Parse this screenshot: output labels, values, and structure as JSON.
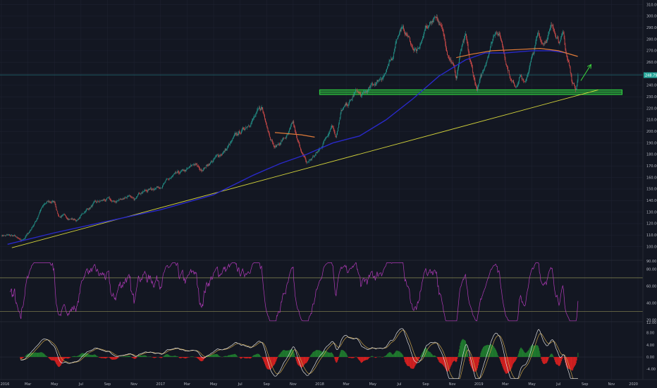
{
  "chart_data": [
    {
      "type": "candlestick",
      "panel": "price",
      "title": "",
      "yticks": [
        100,
        110,
        120,
        130,
        140,
        150,
        160,
        170,
        180,
        190,
        200,
        210,
        220,
        230,
        240,
        250,
        260,
        270,
        280,
        290,
        300,
        310
      ],
      "ytick_labels": [
        "100.00",
        "110.00",
        "120.00",
        "130.00",
        "140.00",
        "150.00",
        "160.00",
        "170.00",
        "180.00",
        "190.00",
        "200.00",
        "210.00",
        "220.00",
        "230.00",
        "240.00",
        "250.00",
        "260.00",
        "270.00",
        "280.00",
        "290.00",
        "300.00",
        "310.00"
      ],
      "ylim": [
        93,
        314
      ],
      "last_price": 248.79,
      "last_price_label": "248.79",
      "x_range": [
        "2016-01-01",
        "2019-11-16"
      ],
      "price_path": [
        [
          "2016-01-01",
          110
        ],
        [
          "2016-02-01",
          109
        ],
        [
          "2016-02-15",
          104
        ],
        [
          "2016-03-01",
          111
        ],
        [
          "2016-03-20",
          123
        ],
        [
          "2016-04-01",
          134
        ],
        [
          "2016-04-15",
          138
        ],
        [
          "2016-05-01",
          139
        ],
        [
          "2016-05-10",
          127
        ],
        [
          "2016-06-01",
          125
        ],
        [
          "2016-06-24",
          123
        ],
        [
          "2016-07-10",
          131
        ],
        [
          "2016-08-01",
          137
        ],
        [
          "2016-09-01",
          141
        ],
        [
          "2016-09-15",
          138
        ],
        [
          "2016-10-15",
          144
        ],
        [
          "2016-11-01",
          140
        ],
        [
          "2016-11-09",
          147
        ],
        [
          "2016-12-01",
          149
        ],
        [
          "2017-01-01",
          153
        ],
        [
          "2017-02-01",
          161
        ],
        [
          "2017-03-01",
          166
        ],
        [
          "2017-03-20",
          172
        ],
        [
          "2017-04-01",
          166
        ],
        [
          "2017-04-20",
          172
        ],
        [
          "2017-05-10",
          178
        ],
        [
          "2017-06-01",
          185
        ],
        [
          "2017-06-20",
          195
        ],
        [
          "2017-07-10",
          202
        ],
        [
          "2017-08-01",
          212
        ],
        [
          "2017-08-20",
          220
        ],
        [
          "2017-08-28",
          211
        ],
        [
          "2017-09-10",
          196
        ],
        [
          "2017-09-20",
          186
        ],
        [
          "2017-10-05",
          192
        ],
        [
          "2017-10-20",
          197
        ],
        [
          "2017-11-01",
          206
        ],
        [
          "2017-11-10",
          191
        ],
        [
          "2017-11-20",
          183
        ],
        [
          "2017-12-01",
          172
        ],
        [
          "2017-12-15",
          177
        ],
        [
          "2018-01-01",
          184
        ],
        [
          "2018-01-15",
          195
        ],
        [
          "2018-01-29",
          207
        ],
        [
          "2018-02-08",
          197
        ],
        [
          "2018-02-20",
          217
        ],
        [
          "2018-03-10",
          225
        ],
        [
          "2018-03-25",
          235
        ],
        [
          "2018-04-05",
          230
        ],
        [
          "2018-04-20",
          235
        ],
        [
          "2018-05-10",
          243
        ],
        [
          "2018-06-01",
          252
        ],
        [
          "2018-06-15",
          262
        ],
        [
          "2018-06-25",
          282
        ],
        [
          "2018-07-05",
          290
        ],
        [
          "2018-07-20",
          283
        ],
        [
          "2018-08-01",
          273
        ],
        [
          "2018-08-15",
          269
        ],
        [
          "2018-09-01",
          290
        ],
        [
          "2018-09-15",
          296
        ],
        [
          "2018-09-25",
          302
        ],
        [
          "2018-10-05",
          291
        ],
        [
          "2018-10-20",
          270
        ],
        [
          "2018-11-01",
          262
        ],
        [
          "2018-11-10",
          246
        ],
        [
          "2018-11-20",
          269
        ],
        [
          "2018-12-01",
          280
        ],
        [
          "2018-12-10",
          262
        ],
        [
          "2018-12-20",
          246
        ],
        [
          "2018-12-27",
          236
        ],
        [
          "2019-01-10",
          250
        ],
        [
          "2019-01-25",
          272
        ],
        [
          "2019-02-10",
          290
        ],
        [
          "2019-02-20",
          282
        ],
        [
          "2019-03-05",
          258
        ],
        [
          "2019-03-15",
          244
        ],
        [
          "2019-03-25",
          240
        ],
        [
          "2019-04-05",
          251
        ],
        [
          "2019-04-15",
          240
        ],
        [
          "2019-04-25",
          255
        ],
        [
          "2019-05-05",
          268
        ],
        [
          "2019-05-15",
          284
        ],
        [
          "2019-05-25",
          277
        ],
        [
          "2019-06-05",
          282
        ],
        [
          "2019-06-15",
          290
        ],
        [
          "2019-06-25",
          286
        ],
        [
          "2019-07-05",
          280
        ],
        [
          "2019-07-12",
          283
        ],
        [
          "2019-07-18",
          268
        ],
        [
          "2019-07-25",
          258
        ],
        [
          "2019-08-01",
          244
        ],
        [
          "2019-08-10",
          238
        ],
        [
          "2019-08-16",
          248.79
        ]
      ],
      "moving_average_blue": [
        [
          "2016-01-15",
          102
        ],
        [
          "2016-05-01",
          112
        ],
        [
          "2016-09-01",
          122
        ],
        [
          "2017-01-01",
          132
        ],
        [
          "2017-05-01",
          145
        ],
        [
          "2017-08-01",
          162
        ],
        [
          "2017-10-01",
          172
        ],
        [
          "2017-12-01",
          180
        ],
        [
          "2018-02-01",
          190
        ],
        [
          "2018-04-01",
          196
        ],
        [
          "2018-06-01",
          210
        ],
        [
          "2018-08-01",
          228
        ],
        [
          "2018-10-01",
          248
        ],
        [
          "2018-12-01",
          262
        ],
        [
          "2019-01-15",
          268
        ],
        [
          "2019-03-01",
          268
        ],
        [
          "2019-05-01",
          270
        ],
        [
          "2019-06-15",
          270
        ],
        [
          "2019-07-20",
          268
        ]
      ],
      "moving_average_orange_segments": [
        [
          [
            "2017-09-20",
            199
          ],
          [
            "2017-10-20",
            198
          ],
          [
            "2017-11-20",
            197
          ],
          [
            "2017-12-20",
            195
          ]
        ],
        [
          [
            "2018-11-10",
            264
          ],
          [
            "2018-12-15",
            267
          ],
          [
            "2019-02-01",
            270
          ],
          [
            "2019-04-01",
            271
          ],
          [
            "2019-05-20",
            272
          ],
          [
            "2019-07-01",
            270
          ],
          [
            "2019-08-15",
            265
          ]
        ]
      ],
      "trendline": [
        [
          "2016-01-25",
          99
        ],
        [
          "2019-10-01",
          236
        ]
      ],
      "support_zone": [
        [
          "2018-01-01",
          2019.9
        ],
        232,
        236
      ],
      "horizontal_line": 249,
      "arrow": [
        [
          "2019-08-22",
          244
        ],
        [
          "2019-09-15",
          258
        ]
      ]
    },
    {
      "type": "line",
      "panel": "rsi",
      "yticks": [
        20,
        40,
        60,
        80
      ],
      "ytick_labels": [
        "20.00",
        "40.00",
        "60.00",
        "80.00"
      ],
      "ylim": [
        18,
        90
      ],
      "top_label": "90.00",
      "bands": [
        70,
        30
      ]
    },
    {
      "type": "bar",
      "panel": "macd",
      "yticks": [
        -4,
        0,
        4,
        8
      ],
      "ytick_labels": [
        "-4.00",
        "0.00",
        "4.00",
        "8.00"
      ],
      "ylim": [
        -7.5,
        11.5
      ],
      "top_label": "12.00"
    }
  ],
  "x_axis": {
    "ticks": [
      {
        "date": "2016-01-01",
        "label": "2016"
      },
      {
        "date": "2016-03-01",
        "label": "Mar"
      },
      {
        "date": "2016-05-01",
        "label": "May"
      },
      {
        "date": "2016-07-01",
        "label": "Jul"
      },
      {
        "date": "2016-09-01",
        "label": "Sep"
      },
      {
        "date": "2016-11-01",
        "label": "Nov"
      },
      {
        "date": "2017-01-01",
        "label": "2017"
      },
      {
        "date": "2017-03-01",
        "label": "Mar"
      },
      {
        "date": "2017-05-01",
        "label": "May"
      },
      {
        "date": "2017-07-01",
        "label": "Jul"
      },
      {
        "date": "2017-09-01",
        "label": "Sep"
      },
      {
        "date": "2017-11-01",
        "label": "Nov"
      },
      {
        "date": "2018-01-01",
        "label": "2018"
      },
      {
        "date": "2018-03-01",
        "label": "Mar"
      },
      {
        "date": "2018-05-01",
        "label": "May"
      },
      {
        "date": "2018-07-01",
        "label": "Jul"
      },
      {
        "date": "2018-09-01",
        "label": "Sep"
      },
      {
        "date": "2018-11-01",
        "label": "Nov"
      },
      {
        "date": "2019-01-01",
        "label": "2019"
      },
      {
        "date": "2019-03-01",
        "label": "Mar"
      },
      {
        "date": "2019-05-01",
        "label": "May"
      },
      {
        "date": "2019-07-01",
        "label": "Jul"
      },
      {
        "date": "2019-09-01",
        "label": "Sep"
      },
      {
        "date": "2019-11-01",
        "label": "Nov"
      },
      {
        "date": "2020-01-01",
        "label": "2020"
      }
    ]
  },
  "colors": {
    "background": "#131722",
    "up": "#26a69a",
    "down": "#ef5350",
    "ma_blue": "#2929c8",
    "ma_orange": "#e07b39",
    "trendline": "#d4d43a",
    "support": "#2ecc40",
    "arrow": "#3ddc3d",
    "hline": "#1f5f6a",
    "rsi": "#b03ab8",
    "rsi_band": "#8a8a55",
    "macd": "#e0e0e0",
    "signal": "#c8a24a",
    "hist_pos": "#1f7a2e",
    "hist_neg": "#d42020",
    "price_label_bg": "#26a69a"
  }
}
